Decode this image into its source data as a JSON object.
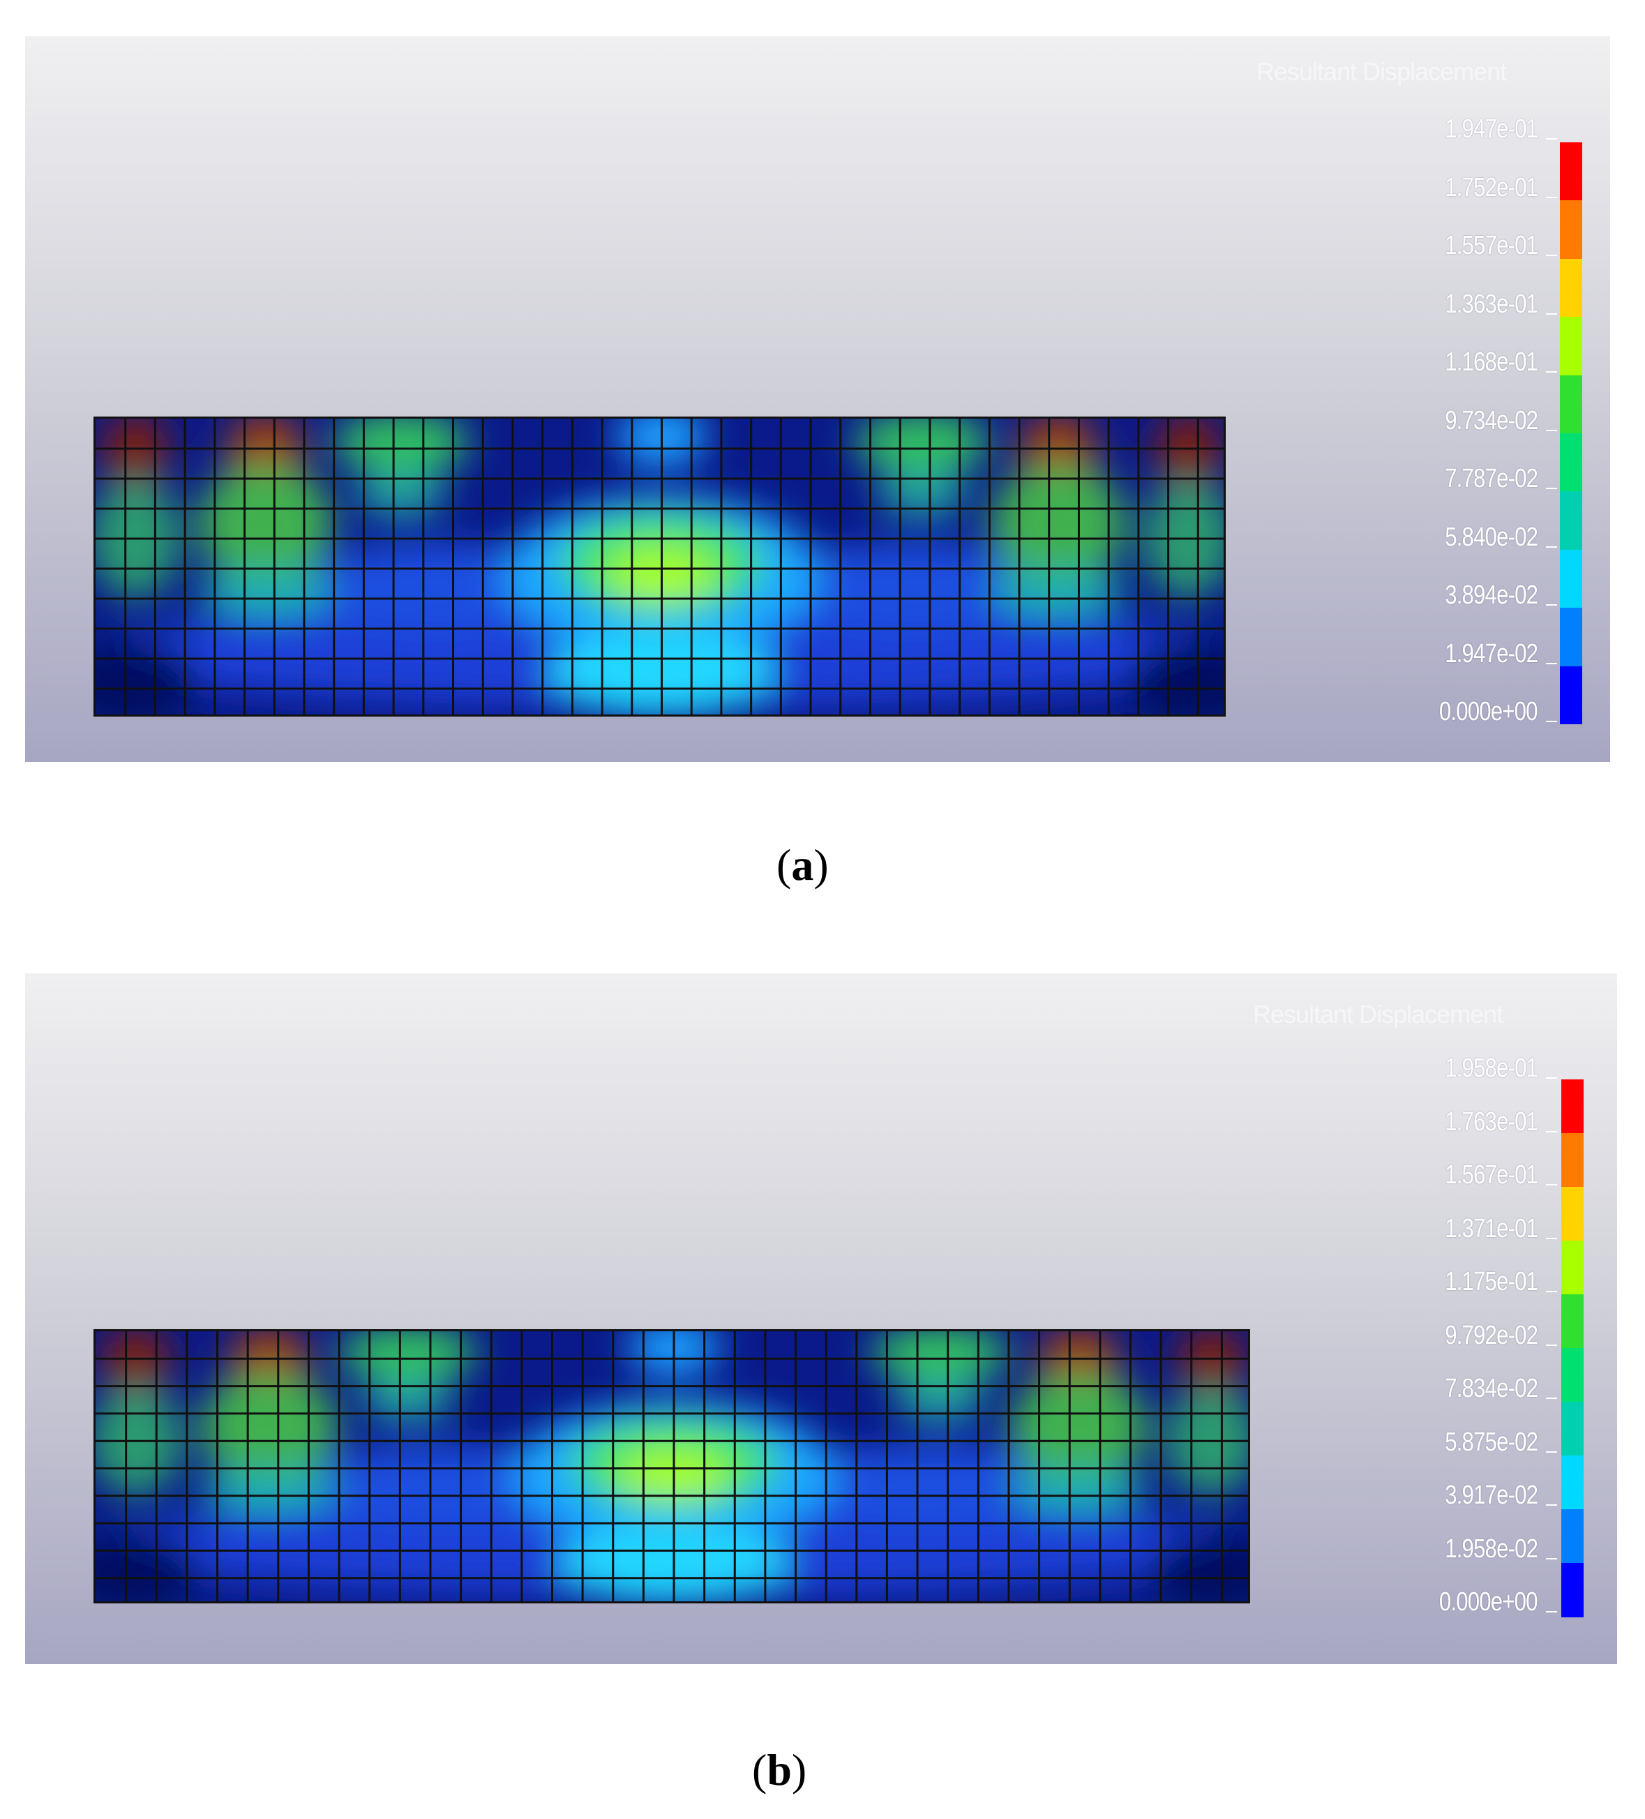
{
  "panels": [
    {
      "id": "a",
      "caption_letter": "a",
      "legend_title": "Resultant Displacement",
      "legend_labels": [
        "1.947e-01",
        "1.752e-01",
        "1.557e-01",
        "1.363e-01",
        "1.168e-01",
        "9.734e-02",
        "7.787e-02",
        "5.840e-02",
        "3.894e-02",
        "1.947e-02",
        "0.000e+00"
      ]
    },
    {
      "id": "b",
      "caption_letter": "b",
      "legend_title": "Resultant Displacement",
      "legend_labels": [
        "1.958e-01",
        "1.763e-01",
        "1.567e-01",
        "1.371e-01",
        "1.175e-01",
        "9.792e-02",
        "7.834e-02",
        "5.875e-02",
        "3.917e-02",
        "1.958e-02",
        "0.000e+00"
      ]
    }
  ],
  "colors": {
    "scale": [
      "#ff0000",
      "#ff7a00",
      "#ffd200",
      "#a8ff00",
      "#30e030",
      "#00e070",
      "#00d0b0",
      "#00d8ff",
      "#0080ff",
      "#0000ff"
    ]
  }
}
